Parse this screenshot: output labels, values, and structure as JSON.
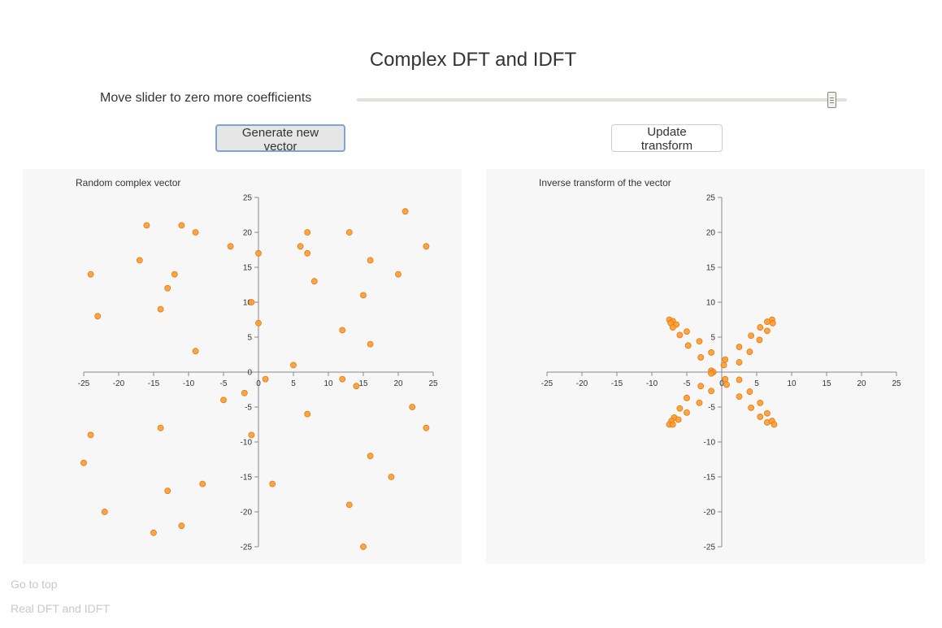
{
  "page": {
    "title": "Complex DFT and IDFT",
    "slider_label": "Move slider to zero more coefficients",
    "slider_position": 0.97
  },
  "buttons": {
    "generate": "Generate new vector",
    "update": "Update transform"
  },
  "footer": {
    "go_to_top": "Go to top",
    "real_link": "Real DFT and IDFT"
  },
  "colors": {
    "point_fill": "#ff9a2e",
    "point_stroke": "#e07a10",
    "panel_bg": "#f7f7f7",
    "axis": "#888888"
  },
  "chart_data": [
    {
      "type": "scatter",
      "title": "Random complex vector",
      "xlim": [
        -25,
        25
      ],
      "ylim": [
        -25,
        25
      ],
      "xticks": [
        -25,
        -20,
        -15,
        -10,
        -5,
        0,
        5,
        10,
        15,
        20,
        25
      ],
      "yticks": [
        25,
        20,
        15,
        10,
        5,
        0,
        -5,
        -10,
        -15,
        -20,
        -25
      ],
      "grid": false,
      "points": [
        [
          -16,
          21
        ],
        [
          -11,
          21
        ],
        [
          -9,
          20
        ],
        [
          -4,
          18
        ],
        [
          0,
          17
        ],
        [
          7,
          20
        ],
        [
          6,
          18
        ],
        [
          7,
          17
        ],
        [
          13,
          20
        ],
        [
          21,
          23
        ],
        [
          24,
          18
        ],
        [
          16,
          16
        ],
        [
          20,
          14
        ],
        [
          8,
          13
        ],
        [
          -24,
          14
        ],
        [
          -17,
          16
        ],
        [
          -12,
          14
        ],
        [
          -13,
          12
        ],
        [
          -14,
          9
        ],
        [
          -23,
          8
        ],
        [
          -1,
          10
        ],
        [
          0,
          7
        ],
        [
          15,
          11
        ],
        [
          12,
          6
        ],
        [
          16,
          4
        ],
        [
          -9,
          3
        ],
        [
          5,
          1
        ],
        [
          1,
          -1
        ],
        [
          12,
          -1
        ],
        [
          14,
          -2
        ],
        [
          -2,
          -3
        ],
        [
          -5,
          -4
        ],
        [
          22,
          -5
        ],
        [
          24,
          -8
        ],
        [
          7,
          -6
        ],
        [
          -14,
          -8
        ],
        [
          -24,
          -9
        ],
        [
          -1,
          -9
        ],
        [
          -25,
          -13
        ],
        [
          16,
          -12
        ],
        [
          19,
          -15
        ],
        [
          -8,
          -16
        ],
        [
          2,
          -16
        ],
        [
          -13,
          -17
        ],
        [
          -22,
          -20
        ],
        [
          13,
          -19
        ],
        [
          -11,
          -22
        ],
        [
          -15,
          -23
        ],
        [
          15,
          -25
        ]
      ]
    },
    {
      "type": "scatter",
      "title": "Inverse transform of the vector",
      "xlim": [
        -25,
        25
      ],
      "ylim": [
        -25,
        25
      ],
      "xticks": [
        -25,
        -20,
        -15,
        -10,
        -5,
        0,
        5,
        10,
        15,
        20,
        25
      ],
      "yticks": [
        25,
        20,
        15,
        10,
        5,
        0,
        -5,
        -10,
        -15,
        -20,
        -25
      ],
      "grid": false,
      "points": [
        [
          -7.5,
          7.5
        ],
        [
          -7,
          7.3
        ],
        [
          -7.3,
          7.0
        ],
        [
          -6.5,
          6.8
        ],
        [
          -7,
          6.4
        ],
        [
          -5,
          5.8
        ],
        [
          -6,
          5.3
        ],
        [
          -3.2,
          4.4
        ],
        [
          -4.8,
          3.8
        ],
        [
          -1.5,
          2.8
        ],
        [
          -3,
          2.1
        ],
        [
          0.5,
          1.8
        ],
        [
          -1.5,
          0.2
        ],
        [
          0.3,
          1.0
        ],
        [
          -1.2,
          0.0
        ],
        [
          -1.5,
          -0.2
        ],
        [
          7.2,
          7.5
        ],
        [
          6.5,
          7.2
        ],
        [
          7.3,
          7.0
        ],
        [
          5.5,
          6.4
        ],
        [
          6.5,
          5.9
        ],
        [
          4.2,
          5.2
        ],
        [
          5.4,
          4.6
        ],
        [
          2.5,
          3.6
        ],
        [
          4.0,
          2.9
        ],
        [
          2.5,
          1.4
        ],
        [
          0.5,
          -1.0
        ],
        [
          0.7,
          -1.8
        ],
        [
          2.5,
          -1.1
        ],
        [
          -3.0,
          -2.0
        ],
        [
          -1.5,
          -2.7
        ],
        [
          -5.0,
          -3.7
        ],
        [
          -3.2,
          -4.4
        ],
        [
          4.0,
          -2.8
        ],
        [
          2.5,
          -3.5
        ],
        [
          5.5,
          -4.4
        ],
        [
          4.2,
          -5.1
        ],
        [
          -6.0,
          -5.2
        ],
        [
          -5.0,
          -5.8
        ],
        [
          6.5,
          -5.9
        ],
        [
          5.5,
          -6.4
        ],
        [
          -6.8,
          -6.5
        ],
        [
          -6.2,
          -6.8
        ],
        [
          -7.2,
          -7.0
        ],
        [
          -7.5,
          -7.5
        ],
        [
          -7.0,
          -7.5
        ],
        [
          6.5,
          -7.2
        ],
        [
          7.2,
          -7.0
        ],
        [
          7.5,
          -7.5
        ]
      ]
    }
  ]
}
